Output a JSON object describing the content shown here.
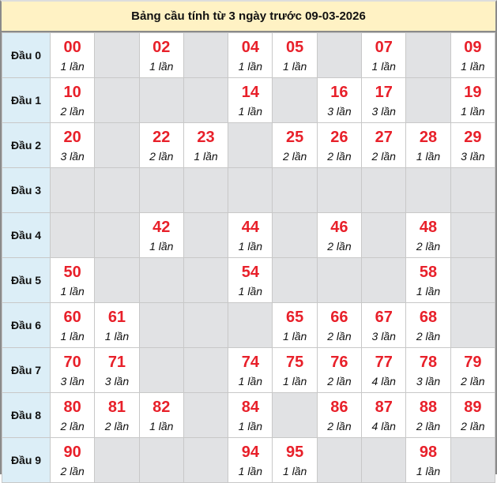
{
  "title": "Bảng cầu tính từ 3 ngày trước 09-03-2026",
  "colors": {
    "number": "#e8202a",
    "label_bg": "#dceef7",
    "title_bg": "#fff2c4",
    "empty_bg": "#e1e2e4"
  },
  "rows": [
    {
      "label": "Đầu 0",
      "cells": [
        {
          "n": "00",
          "c": "1 lần"
        },
        null,
        {
          "n": "02",
          "c": "1 lần"
        },
        null,
        {
          "n": "04",
          "c": "1 lần"
        },
        {
          "n": "05",
          "c": "1 lần"
        },
        null,
        {
          "n": "07",
          "c": "1 lần"
        },
        null,
        {
          "n": "09",
          "c": "1 lần"
        }
      ]
    },
    {
      "label": "Đầu 1",
      "cells": [
        {
          "n": "10",
          "c": "2 lần"
        },
        null,
        null,
        null,
        {
          "n": "14",
          "c": "1 lần"
        },
        null,
        {
          "n": "16",
          "c": "3 lần"
        },
        {
          "n": "17",
          "c": "3 lần"
        },
        null,
        {
          "n": "19",
          "c": "1 lần"
        }
      ]
    },
    {
      "label": "Đầu 2",
      "cells": [
        {
          "n": "20",
          "c": "3 lần"
        },
        null,
        {
          "n": "22",
          "c": "2 lần"
        },
        {
          "n": "23",
          "c": "1 lần"
        },
        null,
        {
          "n": "25",
          "c": "2 lần"
        },
        {
          "n": "26",
          "c": "2 lần"
        },
        {
          "n": "27",
          "c": "2 lần"
        },
        {
          "n": "28",
          "c": "1 lần"
        },
        {
          "n": "29",
          "c": "3 lần"
        }
      ]
    },
    {
      "label": "Đầu 3",
      "cells": [
        null,
        null,
        null,
        null,
        null,
        null,
        null,
        null,
        null,
        null
      ]
    },
    {
      "label": "Đầu 4",
      "cells": [
        null,
        null,
        {
          "n": "42",
          "c": "1 lần"
        },
        null,
        {
          "n": "44",
          "c": "1 lần"
        },
        null,
        {
          "n": "46",
          "c": "2 lần"
        },
        null,
        {
          "n": "48",
          "c": "2 lần"
        },
        null
      ]
    },
    {
      "label": "Đầu 5",
      "cells": [
        {
          "n": "50",
          "c": "1 lần"
        },
        null,
        null,
        null,
        {
          "n": "54",
          "c": "1 lần"
        },
        null,
        null,
        null,
        {
          "n": "58",
          "c": "1 lần"
        },
        null
      ]
    },
    {
      "label": "Đầu 6",
      "cells": [
        {
          "n": "60",
          "c": "1 lần"
        },
        {
          "n": "61",
          "c": "1 lần"
        },
        null,
        null,
        null,
        {
          "n": "65",
          "c": "1 lần"
        },
        {
          "n": "66",
          "c": "2 lần"
        },
        {
          "n": "67",
          "c": "3 lần"
        },
        {
          "n": "68",
          "c": "2 lần"
        },
        null
      ]
    },
    {
      "label": "Đầu 7",
      "cells": [
        {
          "n": "70",
          "c": "3 lần"
        },
        {
          "n": "71",
          "c": "3 lần"
        },
        null,
        null,
        {
          "n": "74",
          "c": "1 lần"
        },
        {
          "n": "75",
          "c": "1 lần"
        },
        {
          "n": "76",
          "c": "2 lần"
        },
        {
          "n": "77",
          "c": "4 lần"
        },
        {
          "n": "78",
          "c": "3 lần"
        },
        {
          "n": "79",
          "c": "2 lần"
        }
      ]
    },
    {
      "label": "Đầu 8",
      "cells": [
        {
          "n": "80",
          "c": "2 lần"
        },
        {
          "n": "81",
          "c": "2 lần"
        },
        {
          "n": "82",
          "c": "1 lần"
        },
        null,
        {
          "n": "84",
          "c": "1 lần"
        },
        null,
        {
          "n": "86",
          "c": "2 lần"
        },
        {
          "n": "87",
          "c": "4 lần"
        },
        {
          "n": "88",
          "c": "2 lần"
        },
        {
          "n": "89",
          "c": "2 lần"
        }
      ]
    },
    {
      "label": "Đầu 9",
      "cells": [
        {
          "n": "90",
          "c": "2 lần"
        },
        null,
        null,
        null,
        {
          "n": "94",
          "c": "1 lần"
        },
        {
          "n": "95",
          "c": "1 lần"
        },
        null,
        null,
        {
          "n": "98",
          "c": "1 lần"
        },
        null
      ]
    }
  ]
}
